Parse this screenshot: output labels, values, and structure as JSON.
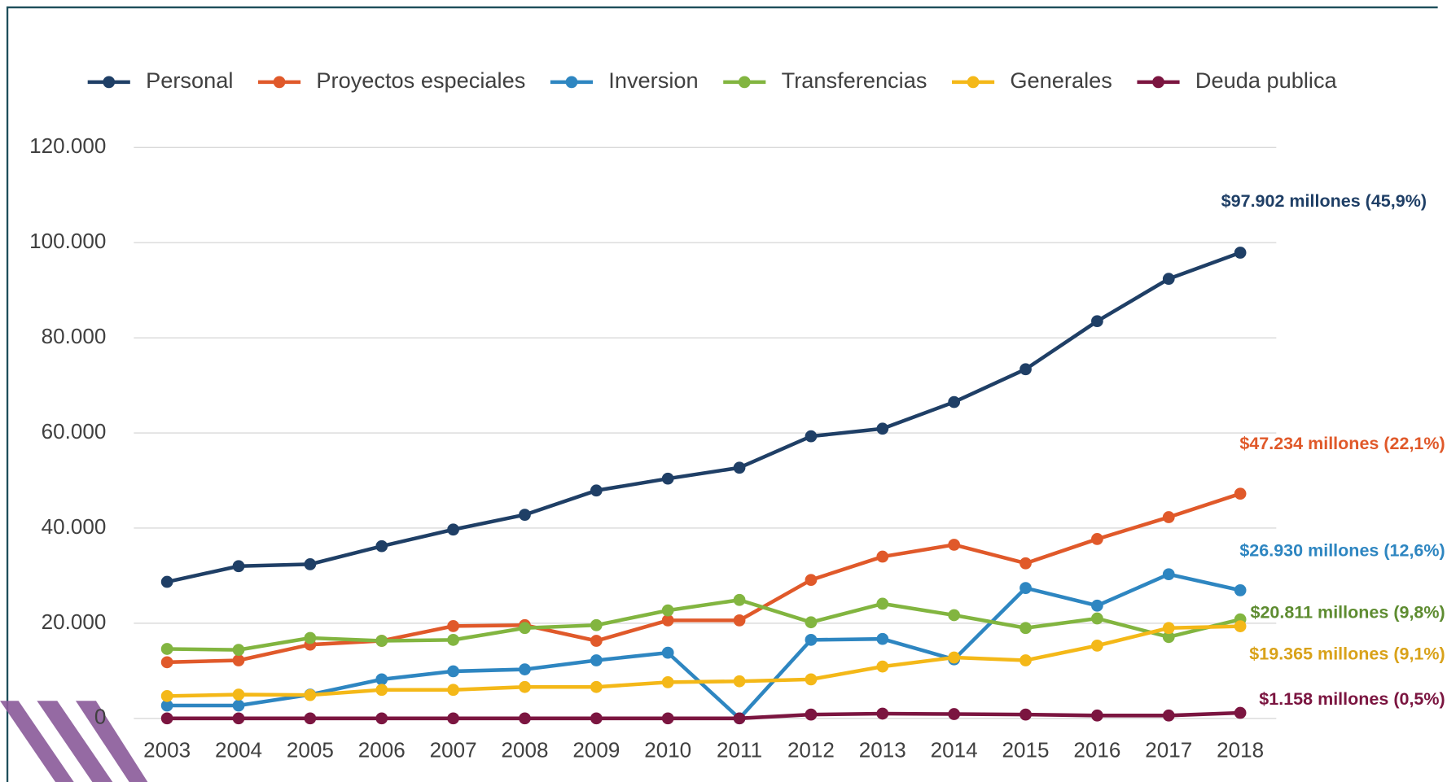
{
  "chart_data": {
    "type": "line",
    "categories": [
      "2003",
      "2004",
      "2005",
      "2006",
      "2007",
      "2008",
      "2009",
      "2010",
      "2011",
      "2012",
      "2013",
      "2014",
      "2015",
      "2016",
      "2017",
      "2018"
    ],
    "ylim": [
      0,
      120000
    ],
    "yticks": [
      {
        "value": 0,
        "label": "0"
      },
      {
        "value": 20000,
        "label": "20.000"
      },
      {
        "value": 40000,
        "label": "40.000"
      },
      {
        "value": 60000,
        "label": "60.000"
      },
      {
        "value": 80000,
        "label": "80.000"
      },
      {
        "value": 100000,
        "label": "100.000"
      },
      {
        "value": 120000,
        "label": "120.000"
      }
    ],
    "grid": true,
    "legend": "top",
    "series": [
      {
        "name": "Personal",
        "color": "#1f3f66",
        "values": [
          28700,
          32000,
          32400,
          36200,
          39700,
          42800,
          47900,
          50400,
          52700,
          59300,
          60900,
          66500,
          73400,
          83500,
          92400,
          97902
        ],
        "end_label": "$97.902 millones (45,9%)",
        "end_label_color": "#1f3f66"
      },
      {
        "name": "Proyectos especiales",
        "color": "#e0592a",
        "values": [
          11800,
          12200,
          15500,
          16300,
          19400,
          19600,
          16300,
          20600,
          20600,
          29100,
          34000,
          36500,
          32600,
          37700,
          42300,
          47234
        ],
        "end_label": "$47.234 millones (22,1%)",
        "end_label_color": "#e0592a"
      },
      {
        "name": "Inversion",
        "color": "#2e86c1",
        "values": [
          2700,
          2700,
          5000,
          8200,
          9900,
          10300,
          12200,
          13800,
          0,
          16500,
          16700,
          12400,
          27400,
          23700,
          30300,
          26930
        ],
        "end_label": "$26.930 millones (12,6%)",
        "end_label_color": "#2e86c1"
      },
      {
        "name": "Transferencias",
        "color": "#82b540",
        "values": [
          14600,
          14400,
          16900,
          16300,
          16500,
          19000,
          19600,
          22700,
          24900,
          20200,
          24100,
          21700,
          19000,
          21000,
          17100,
          20811
        ],
        "end_label": "$20.811 millones (9,8%)",
        "end_label_color": "#5e8c31"
      },
      {
        "name": "Generales",
        "color": "#f4b818",
        "values": [
          4700,
          5000,
          4900,
          6000,
          6000,
          6600,
          6600,
          7600,
          7800,
          8200,
          10900,
          12800,
          12200,
          15300,
          19000,
          19365
        ],
        "end_label": "$19.365 millones (9,1%)",
        "end_label_color": "#d9a21a"
      },
      {
        "name": "Deuda publica",
        "color": "#7b1540",
        "values": [
          0,
          0,
          0,
          0,
          0,
          0,
          0,
          0,
          0,
          800,
          1000,
          900,
          800,
          600,
          600,
          1158
        ],
        "end_label": "$1.158 millones (0,5%)",
        "end_label_color": "#7b1540"
      }
    ]
  }
}
